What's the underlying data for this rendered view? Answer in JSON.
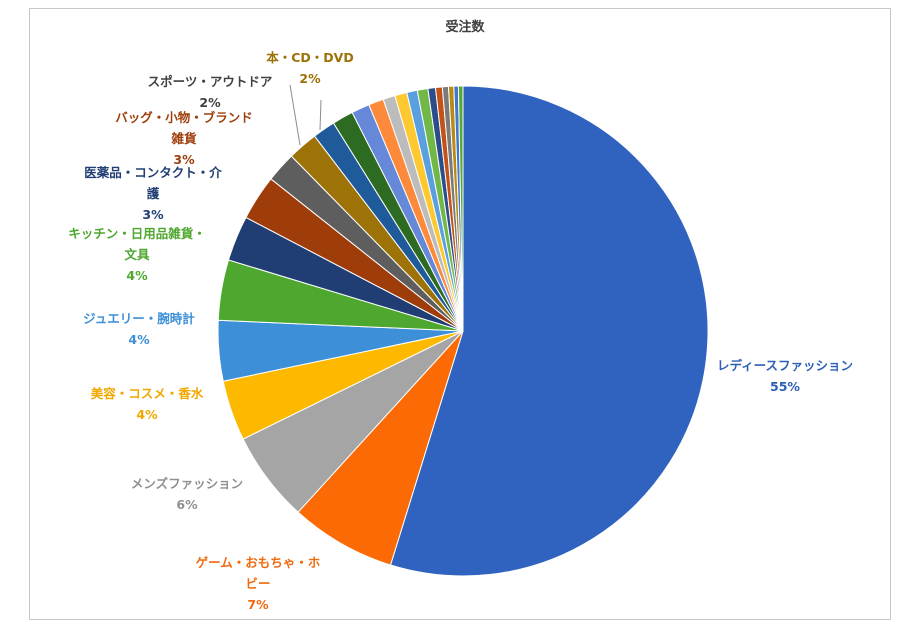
{
  "chart_data": {
    "type": "pie",
    "title": "受注数",
    "start_angle_deg": 0,
    "direction": "clockwise",
    "slices": [
      {
        "label": "レディースファッション",
        "value": 55,
        "value_label": "55%",
        "color": "#3063bf",
        "label_color": "#2e5fb8",
        "label_lines": [
          "レディースファッション"
        ]
      },
      {
        "label": "ゲーム・おもちゃ・ホビー",
        "value": 7,
        "value_label": "7%",
        "color": "#fc6a05",
        "label_color": "#f06a10",
        "label_lines": [
          "ゲーム・おもちゃ・ホ",
          "ビー"
        ]
      },
      {
        "label": "メンズファッション",
        "value": 6,
        "value_label": "6%",
        "color": "#a5a5a5",
        "label_color": "#909090",
        "label_lines": [
          "メンズファッション"
        ]
      },
      {
        "label": "美容・コスメ・香水",
        "value": 4,
        "value_label": "4%",
        "color": "#fdb800",
        "label_color": "#f0a800",
        "label_lines": [
          "美容・コスメ・香水"
        ]
      },
      {
        "label": "ジュエリー・腕時計",
        "value": 4,
        "value_label": "4%",
        "color": "#3d8fd8",
        "label_color": "#3d8fd8",
        "label_lines": [
          "ジュエリー・腕時計"
        ]
      },
      {
        "label": "キッチン・日用品雑貨・文具",
        "value": 4,
        "value_label": "4%",
        "color": "#4ea72e",
        "label_color": "#4ea72e",
        "label_lines": [
          "キッチン・日用品雑貨・",
          "文具"
        ]
      },
      {
        "label": "医薬品・コンタクト・介護",
        "value": 3,
        "value_label": "3%",
        "color": "#203e74",
        "label_color": "#203e74",
        "label_lines": [
          "医薬品・コンタクト・介",
          "護"
        ]
      },
      {
        "label": "バッグ・小物・ブランド雑貨",
        "value": 3,
        "value_label": "3%",
        "color": "#9e3d0a",
        "label_color": "#9e3d0a",
        "label_lines": [
          "バッグ・小物・ブランド",
          "雑貨"
        ]
      },
      {
        "label": "スポーツ・アウトドア",
        "value": 2,
        "value_label": "2%",
        "color": "#5e5e5e",
        "label_color": "#404040",
        "label_lines": [
          "スポーツ・アウトドア"
        ]
      },
      {
        "label": "本・CD・DVD",
        "value": 2,
        "value_label": "2%",
        "color": "#9d7307",
        "label_color": "#9d7307",
        "label_lines": [
          "本・CD・DVD"
        ]
      },
      {
        "label": "",
        "value": 1.5,
        "value_label": "",
        "color": "#1f5a9a",
        "label_color": "",
        "label_lines": []
      },
      {
        "label": "",
        "value": 1.4,
        "value_label": "",
        "color": "#2d6b22",
        "label_color": "",
        "label_lines": []
      },
      {
        "label": "",
        "value": 1.2,
        "value_label": "",
        "color": "#6688d8",
        "label_color": "",
        "label_lines": []
      },
      {
        "label": "",
        "value": 1.0,
        "value_label": "",
        "color": "#fc8a3a",
        "label_color": "",
        "label_lines": []
      },
      {
        "label": "",
        "value": 0.8,
        "value_label": "",
        "color": "#bcbcbc",
        "label_color": "",
        "label_lines": []
      },
      {
        "label": "",
        "value": 0.8,
        "value_label": "",
        "color": "#fec830",
        "label_color": "",
        "label_lines": []
      },
      {
        "label": "",
        "value": 0.7,
        "value_label": "",
        "color": "#5a9fe0",
        "label_color": "",
        "label_lines": []
      },
      {
        "label": "",
        "value": 0.7,
        "value_label": "",
        "color": "#72b848",
        "label_color": "",
        "label_lines": []
      },
      {
        "label": "",
        "value": 0.5,
        "value_label": "",
        "color": "#2c4d8a",
        "label_color": "",
        "label_lines": []
      },
      {
        "label": "",
        "value": 0.45,
        "value_label": "",
        "color": "#c25218",
        "label_color": "",
        "label_lines": []
      },
      {
        "label": "",
        "value": 0.4,
        "value_label": "",
        "color": "#7a7a7a",
        "label_color": "",
        "label_lines": []
      },
      {
        "label": "",
        "value": 0.35,
        "value_label": "",
        "color": "#b88a14",
        "label_color": "",
        "label_lines": []
      },
      {
        "label": "",
        "value": 0.3,
        "value_label": "",
        "color": "#4477cc",
        "label_color": "",
        "label_lines": []
      },
      {
        "label": "",
        "value": 0.3,
        "value_label": "",
        "color": "#55aa33",
        "label_color": "",
        "label_lines": []
      }
    ],
    "legend": "none"
  }
}
